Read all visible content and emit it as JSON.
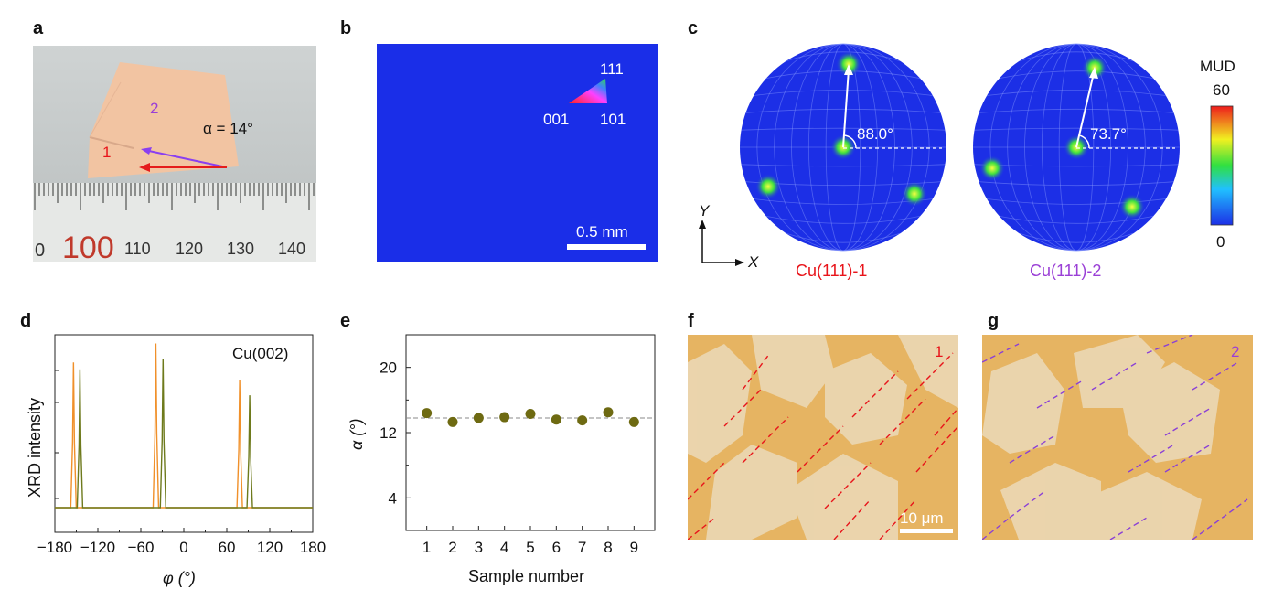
{
  "panel_labels": {
    "a": "a",
    "b": "b",
    "c": "c",
    "d": "d",
    "e": "e",
    "f": "f",
    "g": "g"
  },
  "panel_a": {
    "grain_1_label": "1",
    "grain_2_label": "2",
    "angle_label": "α = 14°",
    "ruler_numbers": [
      "0",
      "100",
      "110",
      "120",
      "130",
      "140"
    ]
  },
  "panel_b": {
    "ipf_111": "111",
    "ipf_001": "001",
    "ipf_101": "101",
    "scale_bar": "0.5 mm"
  },
  "panel_c": {
    "pole1_angle": "88.0°",
    "pole2_angle": "73.7°",
    "pole1_label": "Cu(111)-1",
    "pole2_label": "Cu(111)-2",
    "axis_y": "Y",
    "axis_x": "X",
    "colorbar_title": "MUD",
    "colorbar_max": "60",
    "colorbar_min": "0",
    "colors": {
      "red": "#e8141a",
      "purple": "#9a3fd6",
      "blue_map": "#1c2fe6"
    }
  },
  "panel_f": {
    "grain_label": "1",
    "scale_bar": "10 μm"
  },
  "panel_g": {
    "grain_label": "2"
  },
  "chart_data": [
    {
      "panel": "d",
      "type": "line",
      "legend_text": "Cu(002)",
      "xlabel": "φ (°)",
      "ylabel": "XRD intensity",
      "xlim": [
        -180,
        180
      ],
      "x_ticks": [
        "−180",
        "−120",
        "−60",
        "0",
        "60",
        "120",
        "180"
      ],
      "series": [
        {
          "peaks_x": [
            -154,
            -39,
            78
          ],
          "relative_height": [
            0.84,
            0.95,
            0.74
          ],
          "color": "#f0902a"
        },
        {
          "peaks_x": [
            -145,
            -29,
            92
          ],
          "relative_height": [
            0.8,
            0.86,
            0.65
          ],
          "color": "#6e7a1c"
        }
      ]
    },
    {
      "panel": "e",
      "type": "scatter",
      "xlabel": "Sample number",
      "ylabel": "α (°)",
      "xlim": [
        0.2,
        9.8
      ],
      "ylim": [
        0,
        24
      ],
      "x_ticks": [
        "1",
        "2",
        "3",
        "4",
        "5",
        "6",
        "7",
        "8",
        "9"
      ],
      "y_ticks": [
        "20",
        "12",
        "4"
      ],
      "x": [
        1,
        2,
        3,
        4,
        5,
        6,
        7,
        8,
        9
      ],
      "y": [
        14.4,
        13.3,
        13.8,
        13.9,
        14.3,
        13.6,
        13.5,
        14.5,
        13.3
      ],
      "mean_line": 13.8,
      "point_color": "#6e6a12"
    }
  ]
}
